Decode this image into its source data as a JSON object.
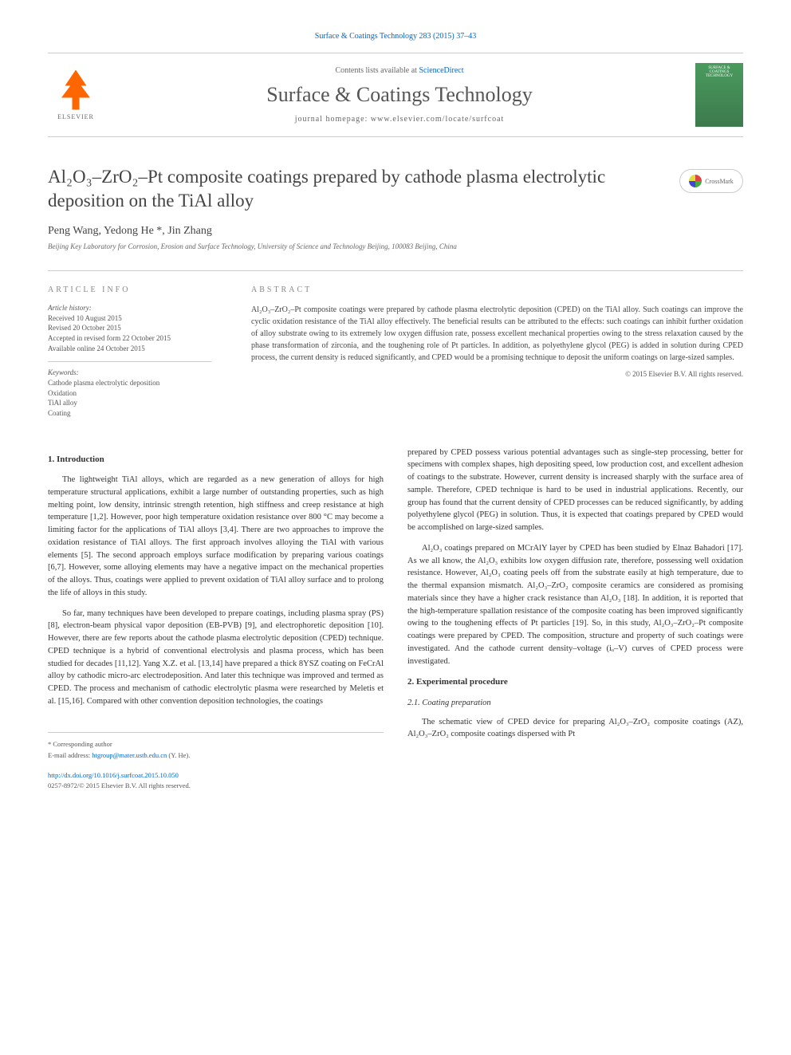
{
  "header": {
    "citation_link": "Surface & Coatings Technology 283 (2015) 37–43",
    "contents_text": "Contents lists available at ",
    "contents_link": "ScienceDirect",
    "journal_title": "Surface & Coatings Technology",
    "homepage_text": "journal homepage: www.elsevier.com/locate/surfcoat",
    "elsevier_label": "ELSEVIER",
    "cover_text": "SURFACE & COATINGS TECHNOLOGY"
  },
  "article": {
    "title_html": "Al₂O₃–ZrO₂–Pt composite coatings prepared by cathode plasma electrolytic deposition on the TiAl alloy",
    "crossmark_label": "CrossMark",
    "authors": "Peng Wang, Yedong He *, Jin Zhang",
    "affiliation": "Beijing Key Laboratory for Corrosion, Erosion and Surface Technology, University of Science and Technology Beijing, 100083 Beijing, China"
  },
  "info": {
    "heading": "ARTICLE INFO",
    "history_label": "Article history:",
    "history": [
      "Received 10 August 2015",
      "Revised 20 October 2015",
      "Accepted in revised form 22 October 2015",
      "Available online 24 October 2015"
    ],
    "keywords_label": "Keywords:",
    "keywords": [
      "Cathode plasma electrolytic deposition",
      "Oxidation",
      "TiAl alloy",
      "Coating"
    ]
  },
  "abstract": {
    "heading": "ABSTRACT",
    "text": "Al₂O₃–ZrO₂–Pt composite coatings were prepared by cathode plasma electrolytic deposition (CPED) on the TiAl alloy. Such coatings can improve the cyclic oxidation resistance of the TiAl alloy effectively. The beneficial results can be attributed to the effects: such coatings can inhibit further oxidation of alloy substrate owing to its extremely low oxygen diffusion rate, possess excellent mechanical properties owing to the stress relaxation caused by the phase transformation of zirconia, and the toughening role of Pt particles. In addition, as polyethylene glycol (PEG) is added in solution during CPED process, the current density is reduced significantly, and CPED would be a promising technique to deposit the uniform coatings on large-sized samples.",
    "copyright": "© 2015 Elsevier B.V. All rights reserved."
  },
  "body": {
    "intro_heading": "1. Introduction",
    "intro_p1": "The lightweight TiAl alloys, which are regarded as a new generation of alloys for high temperature structural applications, exhibit a large number of outstanding properties, such as high melting point, low density, intrinsic strength retention, high stiffness and creep resistance at high temperature [1,2]. However, poor high temperature oxidation resistance over 800 °C may become a limiting factor for the applications of TiAl alloys [3,4]. There are two approaches to improve the oxidation resistance of TiAl alloys. The first approach involves alloying the TiAl with various elements [5]. The second approach employs surface modification by preparing various coatings [6,7]. However, some alloying elements may have a negative impact on the mechanical properties of the alloys. Thus, coatings were applied to prevent oxidation of TiAl alloy surface and to prolong the life of alloys in this study.",
    "intro_p2": "So far, many techniques have been developed to prepare coatings, including plasma spray (PS) [8], electron-beam physical vapor deposition (EB-PVB) [9], and electrophoretic deposition [10]. However, there are few reports about the cathode plasma electrolytic deposition (CPED) technique. CPED technique is a hybrid of conventional electrolysis and plasma process, which has been studied for decades [11,12]. Yang X.Z. et al. [13,14] have prepared a thick 8YSZ coating on FeCrAl alloy by cathodic micro-arc electrodeposition. And later this technique was improved and termed as CPED. The process and mechanism of cathodic electrolytic plasma were researched by Meletis et al. [15,16]. Compared with other convention deposition technologies, the coatings",
    "intro_p3": "prepared by CPED possess various potential advantages such as single-step processing, better for specimens with complex shapes, high depositing speed, low production cost, and excellent adhesion of coatings to the substrate. However, current density is increased sharply with the surface area of sample. Therefore, CPED technique is hard to be used in industrial applications. Recently, our group has found that the current density of CPED processes can be reduced significantly, by adding polyethylene glycol (PEG) in solution. Thus, it is expected that coatings prepared by CPED would be accomplished on large-sized samples.",
    "intro_p4": "Al₂O₃ coatings prepared on MCrAlY layer by CPED has been studied by Elnaz Bahadori [17]. As we all know, the Al₂O₃ exhibits low oxygen diffusion rate, therefore, possessing well oxidation resistance. However, Al₂O₃ coating peels off from the substrate easily at high temperature, due to the thermal expansion mismatch. Al₂O₃–ZrO₂ composite ceramics are considered as promising materials since they have a higher crack resistance than Al₂O₃ [18]. In addition, it is reported that the high-temperature spallation resistance of the composite coating has been improved significantly owing to the toughening effects of Pt particles [19]. So, in this study, Al₂O₃–ZrO₂–Pt composite coatings were prepared by CPED. The composition, structure and property of such coatings were investigated. And the cathode current density–voltage (iₒ–V) curves of CPED process were investigated.",
    "exp_heading": "2. Experimental procedure",
    "exp_sub": "2.1. Coating preparation",
    "exp_p1": "The schematic view of CPED device for preparing Al₂O₃–ZrO₂ composite coatings (AZ), Al₂O₃–ZrO₂ composite coatings dispersed with Pt"
  },
  "footer": {
    "corr_label": "* Corresponding author",
    "email_label": "E-mail address: ",
    "email": "htgroup@mater.ustb.edu.cn",
    "email_name": " (Y. He).",
    "doi": "http://dx.doi.org/10.1016/j.surfcoat.2015.10.050",
    "issn": "0257-8972/© 2015 Elsevier B.V. All rights reserved."
  },
  "colors": {
    "link": "#0066cc",
    "text": "#333333",
    "elsevier_orange": "#ff6600",
    "cover_green": "#4a9b5e"
  }
}
